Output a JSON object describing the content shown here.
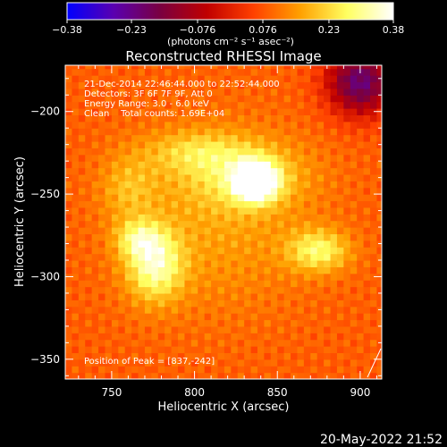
{
  "chart_data": {
    "type": "heatmap",
    "title": "Reconstructed RHESSI Image",
    "xlabel": "Heliocentric X (arcsec)",
    "ylabel": "Heliocentric Y (arcsec)",
    "xlim": [
      722,
      913
    ],
    "ylim": [
      -362,
      -172
    ],
    "x_ticks": [
      {
        "value": 750,
        "label": "750"
      },
      {
        "value": 800,
        "label": "800"
      },
      {
        "value": 850,
        "label": "850"
      },
      {
        "value": 900,
        "label": "900"
      }
    ],
    "y_ticks": [
      {
        "value": -200,
        "label": "−200"
      },
      {
        "value": -250,
        "label": "−250"
      },
      {
        "value": -300,
        "label": "−300"
      },
      {
        "value": -350,
        "label": "−350"
      }
    ],
    "colorbar": {
      "range": [
        -0.38,
        0.38
      ],
      "ticks": [
        {
          "value": -0.38,
          "label": "−0.38"
        },
        {
          "value": -0.23,
          "label": "−0.23"
        },
        {
          "value": -0.076,
          "label": "−0.076"
        },
        {
          "value": 0.076,
          "label": "0.076"
        },
        {
          "value": 0.23,
          "label": "0.23"
        },
        {
          "value": 0.38,
          "label": "0.38"
        }
      ],
      "unit_label": "(photons cm⁻² s⁻¹ asec⁻²)",
      "colors": [
        "#0000ff",
        "#5a00b0",
        "#7a0040",
        "#c00000",
        "#ff4000",
        "#ffa000",
        "#ffff60",
        "#ffffff"
      ]
    },
    "annotations": [
      "21-Dec-2014 22:46:44.000 to 22:52:44.000",
      "Detectors: 3F 6F 7F 9F, Att 0",
      "Energy Range: 3.0 - 6.0 keV",
      "Clean    Total counts: 1.69E+04"
    ],
    "peak_label": "Position of Peak = [837,-242]",
    "sources": [
      {
        "x": 837,
        "y": -242,
        "amp": 0.38,
        "sx": 9,
        "sy": 8
      },
      {
        "x": 830,
        "y": -238,
        "amp": 0.12,
        "sx": 26,
        "sy": 14
      },
      {
        "x": 776,
        "y": -293,
        "amp": 0.22,
        "sx": 12,
        "sy": 15
      },
      {
        "x": 766,
        "y": -277,
        "amp": 0.14,
        "sx": 10,
        "sy": 8
      },
      {
        "x": 875,
        "y": -284,
        "amp": 0.18,
        "sx": 13,
        "sy": 9
      },
      {
        "x": 800,
        "y": -224,
        "amp": 0.1,
        "sx": 22,
        "sy": 9
      },
      {
        "x": 760,
        "y": -246,
        "amp": 0.09,
        "sx": 12,
        "sy": 14
      },
      {
        "x": 815,
        "y": -265,
        "amp": 0.08,
        "sx": 40,
        "sy": 40
      },
      {
        "x": 900,
        "y": -182,
        "amp": -0.3,
        "sx": 14,
        "sy": 14
      }
    ],
    "baseline": 0.085
  },
  "footer": {
    "timestamp": "20-May-2022 21:52"
  }
}
